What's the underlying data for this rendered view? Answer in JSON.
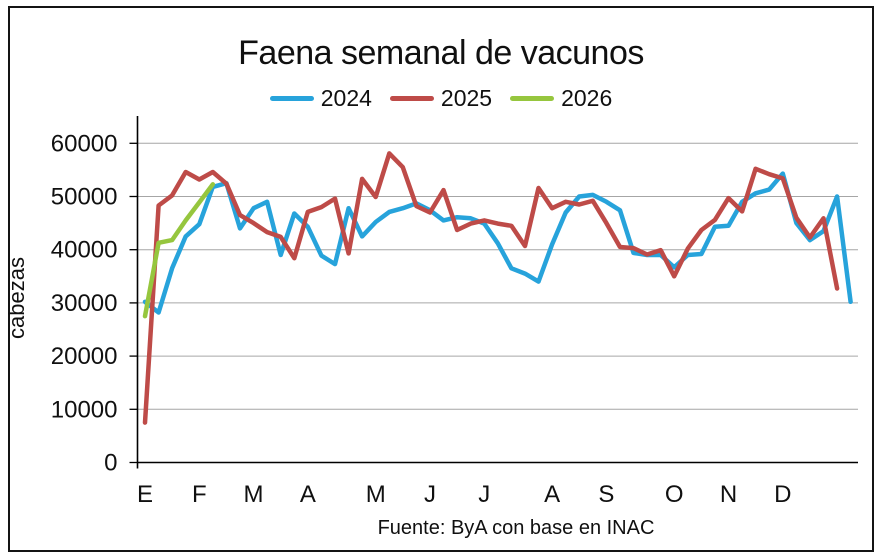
{
  "chart_data": {
    "type": "line",
    "title": "Faena semanal de vacunos",
    "ylabel": "cabezas",
    "source": "Fuente: ByA con base en INAC",
    "grid": true,
    "legend_position": "top-center",
    "ylim": [
      0,
      65000
    ],
    "yticks": [
      0,
      10000,
      20000,
      30000,
      40000,
      50000,
      60000
    ],
    "axis_color": "#000000",
    "grid_color": "#A6A6A6",
    "x_axis_unit": "week",
    "month_labels": [
      {
        "label": "E",
        "week": 1
      },
      {
        "label": "F",
        "week": 5
      },
      {
        "label": "M",
        "week": 9
      },
      {
        "label": "A",
        "week": 13
      },
      {
        "label": "M",
        "week": 18
      },
      {
        "label": "J",
        "week": 22
      },
      {
        "label": "J",
        "week": 26
      },
      {
        "label": "A",
        "week": 31
      },
      {
        "label": "S",
        "week": 35
      },
      {
        "label": "O",
        "week": 40
      },
      {
        "label": "N",
        "week": 44
      },
      {
        "label": "D",
        "week": 48
      }
    ],
    "series": [
      {
        "name": "2024",
        "color": "#27A3DB",
        "start_week": 1,
        "values": [
          30200,
          28200,
          36500,
          42500,
          44800,
          51800,
          52500,
          44000,
          47800,
          49000,
          39000,
          46800,
          44300,
          38900,
          37300,
          47800,
          42500,
          45200,
          47100,
          47800,
          48700,
          47400,
          45500,
          46100,
          45900,
          44900,
          41200,
          36500,
          35500,
          34000,
          41000,
          47000,
          50000,
          50300,
          49000,
          47400,
          39400,
          39000,
          39000,
          36700,
          39000,
          39200,
          44300,
          44500,
          49000,
          50600,
          51300,
          54300,
          45000,
          41800,
          43500,
          50000,
          30200
        ]
      },
      {
        "name": "2025",
        "color": "#BE4B48",
        "start_week": 1,
        "values": [
          7500,
          48300,
          50200,
          54600,
          53200,
          54600,
          52400,
          46500,
          45000,
          43300,
          42400,
          38400,
          47100,
          48000,
          49600,
          39300,
          53300,
          49900,
          58100,
          55500,
          48200,
          47000,
          51200,
          43700,
          44900,
          45500,
          44900,
          44500,
          40700,
          51600,
          47800,
          49000,
          48500,
          49200,
          45000,
          40500,
          40300,
          39100,
          39900,
          35000,
          40200,
          43700,
          45600,
          49700,
          47200,
          55200,
          54200,
          53400,
          46000,
          42300,
          45900,
          32700
        ]
      },
      {
        "name": "2026",
        "color": "#96C63E",
        "start_week": 1,
        "values": [
          27500,
          41300,
          41800,
          45500,
          48900,
          52300
        ]
      }
    ]
  }
}
